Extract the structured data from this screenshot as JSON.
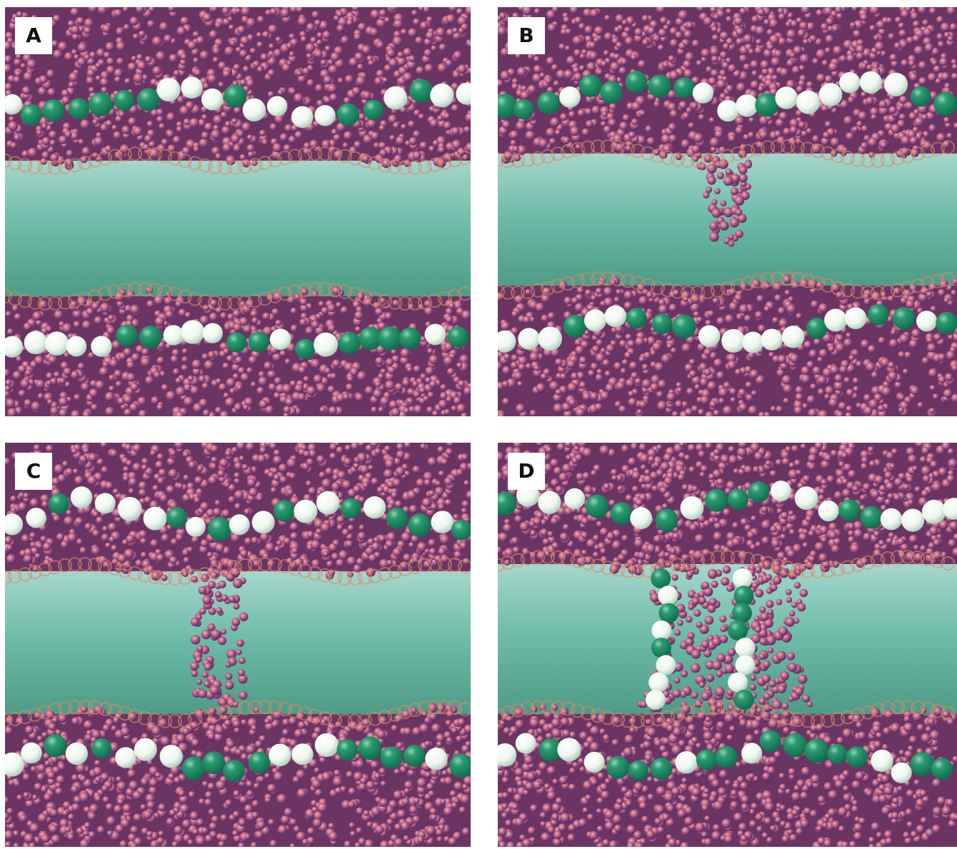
{
  "panels": [
    {
      "id": "A",
      "label": "A",
      "bridge": "none"
    },
    {
      "id": "B",
      "label": "B",
      "bridge": "finger"
    },
    {
      "id": "C",
      "label": "C",
      "bridge": "thin-column"
    },
    {
      "id": "D",
      "label": "D",
      "bridge": "wide-pore"
    }
  ],
  "colors": {
    "gap_top": "#a6d6cc",
    "gap_mid": "#6bbaa6",
    "gap_bottom": "#4e9c88",
    "bead_base": "#7a3a6e",
    "bead_light": "#c86f8a",
    "bead_edge": "#4a2a6a",
    "rim": "#d98a6a",
    "head_green": "#0f6a4c",
    "head_white": "#eef6ee"
  }
}
